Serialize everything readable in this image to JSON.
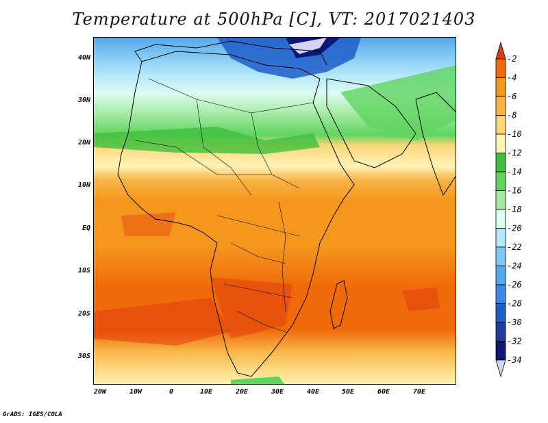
{
  "title": "Temperature at 500hPa [C], VT: 2017021403",
  "credit": "GrADS: IGES/COLA",
  "map": {
    "lat_labels": [
      "40N",
      "30N",
      "20N",
      "10N",
      "EQ",
      "10S",
      "20S",
      "30S"
    ],
    "lon_labels": [
      "20W",
      "10W",
      "0",
      "10E",
      "20E",
      "30E",
      "40E",
      "50E",
      "60E",
      "70E"
    ],
    "lon_range": [
      -22,
      80
    ],
    "lat_range": [
      -37,
      45
    ]
  },
  "colorbar": {
    "levels": [
      "-2",
      "-4",
      "-6",
      "-8",
      "-10",
      "-12",
      "-14",
      "-16",
      "-18",
      "-20",
      "-22",
      "-24",
      "-26",
      "-28",
      "-30",
      "-32",
      "-34"
    ],
    "colors": [
      "#e03c0c",
      "#f06a0a",
      "#f5961d",
      "#f8b444",
      "#fcd77a",
      "#fff3b6",
      "#3fbf3f",
      "#5fd45f",
      "#a2eaa2",
      "#dcfcf0",
      "#b5e8fa",
      "#7fc8f2",
      "#56a8ec",
      "#3a87e6",
      "#1f5ec9",
      "#1c3aa3",
      "#0b1878",
      "#d4d4f4"
    ]
  }
}
